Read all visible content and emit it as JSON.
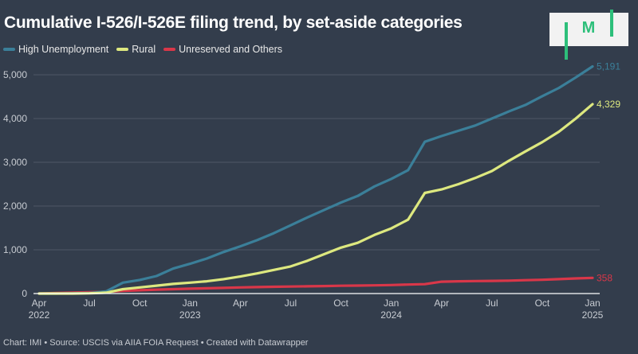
{
  "title": "Cumulative I-526/I-526E filing trend, by set-aside categories",
  "logo": {
    "text": "M",
    "name": "IMI"
  },
  "footer": "Chart: IMI • Source: USCIS via AIIA FOIA Request • Created with Datawrapper",
  "legend": [
    {
      "label": "High Unemployment",
      "color": "#3b7f99"
    },
    {
      "label": "Rural",
      "color": "#dde87f"
    },
    {
      "label": "Unreserved and Others",
      "color": "#d93749"
    }
  ],
  "chart_data": {
    "type": "line",
    "title": "Cumulative I-526/I-526E filing trend, by set-aside categories",
    "xlabel": "",
    "ylabel": "",
    "ylim": [
      0,
      5000
    ],
    "yticks": [
      0,
      1000,
      2000,
      3000,
      4000,
      5000
    ],
    "ytick_labels": [
      "0",
      "1,000",
      "2,000",
      "3,000",
      "4,000",
      "5,000"
    ],
    "grid": true,
    "legend_position": "top-left",
    "x_start": "2022-04",
    "x": [
      "2022-04",
      "2022-05",
      "2022-06",
      "2022-07",
      "2022-08",
      "2022-09",
      "2022-10",
      "2022-11",
      "2022-12",
      "2023-01",
      "2023-02",
      "2023-03",
      "2023-04",
      "2023-05",
      "2023-06",
      "2023-07",
      "2023-08",
      "2023-09",
      "2023-10",
      "2023-11",
      "2023-12",
      "2024-01",
      "2024-02",
      "2024-03",
      "2024-04",
      "2024-05",
      "2024-06",
      "2024-07",
      "2024-08",
      "2024-09",
      "2024-10",
      "2024-11",
      "2024-12",
      "2025-01"
    ],
    "xticks": [
      {
        "month_index": 0,
        "label": "Apr",
        "year": "2022"
      },
      {
        "month_index": 3,
        "label": "Jul",
        "year": ""
      },
      {
        "month_index": 6,
        "label": "Oct",
        "year": ""
      },
      {
        "month_index": 9,
        "label": "Jan",
        "year": "2023"
      },
      {
        "month_index": 12,
        "label": "Apr",
        "year": ""
      },
      {
        "month_index": 15,
        "label": "Jul",
        "year": ""
      },
      {
        "month_index": 18,
        "label": "Oct",
        "year": ""
      },
      {
        "month_index": 21,
        "label": "Jan",
        "year": "2024"
      },
      {
        "month_index": 24,
        "label": "Apr",
        "year": ""
      },
      {
        "month_index": 27,
        "label": "Jul",
        "year": ""
      },
      {
        "month_index": 30,
        "label": "Oct",
        "year": ""
      },
      {
        "month_index": 33,
        "label": "Jan",
        "year": "2025"
      }
    ],
    "series": [
      {
        "name": "High Unemployment",
        "color": "#3b7f99",
        "end_label": "5,191",
        "values": [
          0,
          0,
          5,
          10,
          50,
          250,
          310,
          400,
          570,
          680,
          800,
          950,
          1080,
          1220,
          1380,
          1560,
          1740,
          1910,
          2080,
          2230,
          2450,
          2620,
          2820,
          3470,
          3600,
          3720,
          3840,
          4000,
          4160,
          4310,
          4510,
          4700,
          4940,
          5191
        ]
      },
      {
        "name": "Rural",
        "color": "#dde87f",
        "end_label": "4,329",
        "values": [
          0,
          0,
          0,
          5,
          20,
          100,
          140,
          180,
          220,
          250,
          280,
          330,
          390,
          460,
          540,
          620,
          750,
          900,
          1050,
          1160,
          1340,
          1490,
          1690,
          2300,
          2380,
          2500,
          2640,
          2800,
          3030,
          3250,
          3460,
          3700,
          4000,
          4329
        ]
      },
      {
        "name": "Unreserved and Others",
        "color": "#d93749",
        "end_label": "358",
        "values": [
          0,
          10,
          20,
          30,
          40,
          60,
          75,
          90,
          100,
          110,
          120,
          130,
          140,
          148,
          155,
          160,
          165,
          170,
          178,
          182,
          188,
          195,
          205,
          215,
          270,
          280,
          285,
          290,
          295,
          305,
          315,
          330,
          345,
          358
        ]
      }
    ]
  }
}
